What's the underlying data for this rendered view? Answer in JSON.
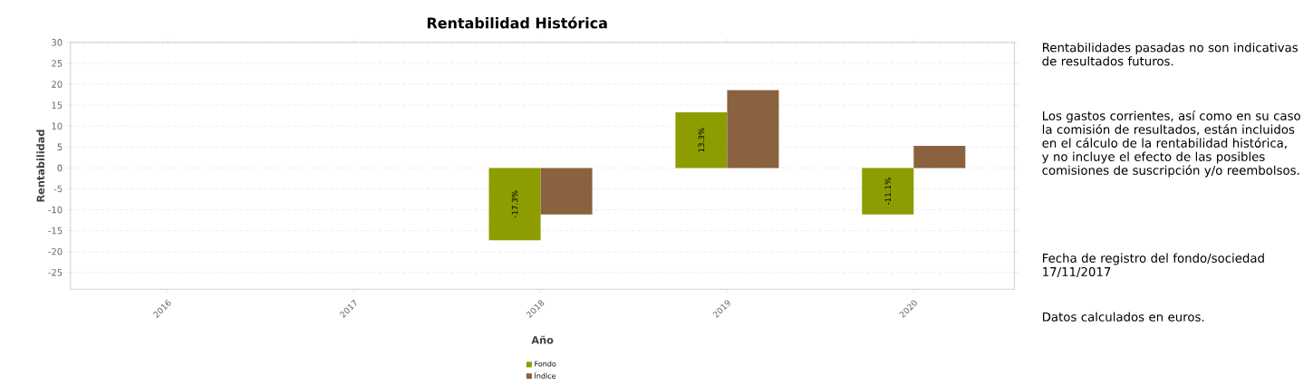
{
  "chart_data": {
    "type": "bar",
    "title": "Rentabilidad Histórica",
    "xlabel": "Año",
    "ylabel": "Rentabilidad",
    "categories": [
      "2016",
      "2017",
      "2018",
      "2019",
      "2020"
    ],
    "series": [
      {
        "name": "Fondo",
        "color": "#8d9c00",
        "values": [
          null,
          null,
          -17.3,
          13.3,
          -11.1
        ],
        "value_labels": [
          null,
          null,
          "-17.3%",
          "13.3%",
          "-11.1%"
        ]
      },
      {
        "name": "Índice",
        "color": "#8a6240",
        "values": [
          null,
          null,
          -11.1,
          18.6,
          5.3
        ]
      }
    ],
    "ylim": [
      -29,
      30
    ],
    "yticks": [
      -25,
      -20,
      -15,
      -10,
      -5,
      0,
      5,
      10,
      15,
      20,
      25,
      30
    ],
    "grid": "y",
    "legend": "bottom",
    "annotations": [
      "Rentabilidades pasadas no son indicativas de resultados futuros.",
      "Los gastos corrientes, así como en su caso la comisión de resultados, están incluidos en el cálculo de la rentabilidad histórica, y no incluye el efecto de las posibles comisiones de suscripción y/o reembolsos.",
      "Fecha de registro del fondo/sociedad 17/11/2017",
      "Datos calculados en euros."
    ]
  }
}
